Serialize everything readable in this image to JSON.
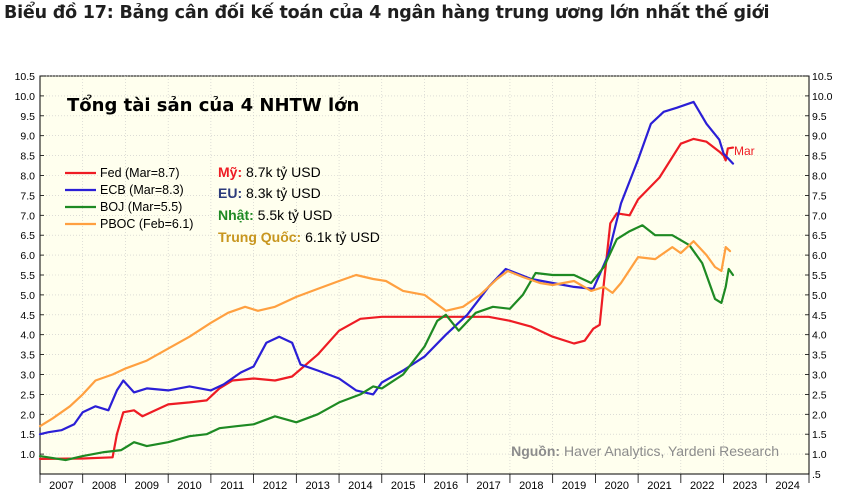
{
  "heading": "Biểu đồ 17: Bảng cân đối kế toán của 4 ngân hàng trung ương lớn nhất thế giới",
  "chart_data": {
    "type": "line",
    "title": "Tổng tài sản của 4 NHTW lớn",
    "xlabel": "",
    "ylabel": "",
    "xlim": [
      2007,
      2025
    ],
    "ylim": [
      0.5,
      10.5
    ],
    "years": [
      "2007",
      "2008",
      "2009",
      "2010",
      "2011",
      "2012",
      "2013",
      "2014",
      "2015",
      "2016",
      "2017",
      "2018",
      "2019",
      "2020",
      "2021",
      "2022",
      "2023",
      "2024"
    ],
    "yticks_left": [
      "1.0",
      "1.5",
      "2.0",
      "2.5",
      "3.0",
      "3.5",
      "4.0",
      "4.5",
      "5.0",
      "5.5",
      "6.0",
      "6.5",
      "7.0",
      "7.5",
      "8.0",
      "8.5",
      "9.0",
      "9.5",
      "10.0",
      "10.5"
    ],
    "yticks_right": [
      ".5",
      "1.0",
      "1.5",
      "2.0",
      "2.5",
      "3.0",
      "3.5",
      "4.0",
      "4.5",
      "5.0",
      "5.5",
      "6.0",
      "6.5",
      "7.0",
      "7.5",
      "8.0",
      "8.5",
      "9.0",
      "9.5",
      "10.0",
      "10.5"
    ],
    "colors": {
      "plot_bg": "#ffffee",
      "fed": "#ee1c24",
      "ecb": "#2b1fd6",
      "boj": "#1e8a23",
      "pboc": "#ffa040",
      "grid": "#c8c8c8",
      "note_gray": "#8c8c8c",
      "eu_label": "#2b3a7a",
      "china_label": "#c8961e"
    },
    "series": [
      {
        "key": "fed",
        "name": "Fed (Mar=8.7)",
        "color": "#ee1c24",
        "points": [
          [
            2007.0,
            0.88
          ],
          [
            2008.0,
            0.89
          ],
          [
            2008.7,
            0.92
          ],
          [
            2008.8,
            1.5
          ],
          [
            2008.95,
            2.05
          ],
          [
            2009.2,
            2.1
          ],
          [
            2009.4,
            1.95
          ],
          [
            2009.7,
            2.1
          ],
          [
            2010.0,
            2.25
          ],
          [
            2010.5,
            2.3
          ],
          [
            2010.9,
            2.35
          ],
          [
            2011.2,
            2.65
          ],
          [
            2011.5,
            2.85
          ],
          [
            2012.0,
            2.9
          ],
          [
            2012.5,
            2.85
          ],
          [
            2012.9,
            2.95
          ],
          [
            2013.5,
            3.5
          ],
          [
            2014.0,
            4.1
          ],
          [
            2014.5,
            4.4
          ],
          [
            2015.0,
            4.45
          ],
          [
            2016.0,
            4.45
          ],
          [
            2017.0,
            4.45
          ],
          [
            2017.5,
            4.45
          ],
          [
            2018.0,
            4.35
          ],
          [
            2018.5,
            4.2
          ],
          [
            2019.0,
            3.95
          ],
          [
            2019.5,
            3.78
          ],
          [
            2019.75,
            3.85
          ],
          [
            2019.95,
            4.15
          ],
          [
            2020.1,
            4.25
          ],
          [
            2020.2,
            5.3
          ],
          [
            2020.35,
            6.8
          ],
          [
            2020.5,
            7.05
          ],
          [
            2020.8,
            7.0
          ],
          [
            2021.0,
            7.4
          ],
          [
            2021.5,
            7.95
          ],
          [
            2022.0,
            8.8
          ],
          [
            2022.3,
            8.92
          ],
          [
            2022.6,
            8.85
          ],
          [
            2022.9,
            8.6
          ],
          [
            2023.0,
            8.5
          ],
          [
            2023.05,
            8.38
          ],
          [
            2023.1,
            8.68
          ],
          [
            2023.22,
            8.7
          ]
        ]
      },
      {
        "key": "ecb",
        "name": "ECB (Mar=8.3)",
        "color": "#2b1fd6",
        "points": [
          [
            2007.0,
            1.5
          ],
          [
            2007.2,
            1.55
          ],
          [
            2007.5,
            1.6
          ],
          [
            2007.8,
            1.75
          ],
          [
            2008.0,
            2.05
          ],
          [
            2008.3,
            2.2
          ],
          [
            2008.6,
            2.1
          ],
          [
            2008.8,
            2.6
          ],
          [
            2008.95,
            2.85
          ],
          [
            2009.2,
            2.55
          ],
          [
            2009.5,
            2.65
          ],
          [
            2010.0,
            2.6
          ],
          [
            2010.5,
            2.7
          ],
          [
            2011.0,
            2.6
          ],
          [
            2011.3,
            2.75
          ],
          [
            2011.7,
            3.05
          ],
          [
            2012.0,
            3.2
          ],
          [
            2012.3,
            3.8
          ],
          [
            2012.6,
            3.95
          ],
          [
            2012.9,
            3.8
          ],
          [
            2013.1,
            3.25
          ],
          [
            2013.5,
            3.1
          ],
          [
            2014.0,
            2.9
          ],
          [
            2014.4,
            2.6
          ],
          [
            2014.8,
            2.5
          ],
          [
            2015.0,
            2.8
          ],
          [
            2015.5,
            3.1
          ],
          [
            2016.0,
            3.45
          ],
          [
            2016.5,
            4.0
          ],
          [
            2017.0,
            4.5
          ],
          [
            2017.5,
            5.2
          ],
          [
            2017.9,
            5.65
          ],
          [
            2018.5,
            5.4
          ],
          [
            2019.0,
            5.3
          ],
          [
            2019.5,
            5.2
          ],
          [
            2019.95,
            5.15
          ],
          [
            2020.3,
            6.0
          ],
          [
            2020.6,
            7.3
          ],
          [
            2021.0,
            8.4
          ],
          [
            2021.3,
            9.3
          ],
          [
            2021.6,
            9.6
          ],
          [
            2021.9,
            9.7
          ],
          [
            2022.3,
            9.85
          ],
          [
            2022.6,
            9.3
          ],
          [
            2022.9,
            8.9
          ],
          [
            2023.0,
            8.55
          ],
          [
            2023.22,
            8.3
          ]
        ]
      },
      {
        "key": "boj",
        "name": "BOJ (Mar=5.5)",
        "color": "#1e8a23",
        "points": [
          [
            2007.0,
            0.95
          ],
          [
            2007.3,
            0.9
          ],
          [
            2007.6,
            0.85
          ],
          [
            2008.0,
            0.95
          ],
          [
            2008.5,
            1.05
          ],
          [
            2008.9,
            1.1
          ],
          [
            2009.2,
            1.3
          ],
          [
            2009.5,
            1.2
          ],
          [
            2010.0,
            1.3
          ],
          [
            2010.5,
            1.45
          ],
          [
            2010.9,
            1.5
          ],
          [
            2011.2,
            1.65
          ],
          [
            2011.6,
            1.7
          ],
          [
            2012.0,
            1.75
          ],
          [
            2012.5,
            1.95
          ],
          [
            2013.0,
            1.8
          ],
          [
            2013.5,
            2.0
          ],
          [
            2014.0,
            2.3
          ],
          [
            2014.5,
            2.5
          ],
          [
            2014.8,
            2.7
          ],
          [
            2015.0,
            2.65
          ],
          [
            2015.5,
            3.0
          ],
          [
            2016.0,
            3.7
          ],
          [
            2016.3,
            4.35
          ],
          [
            2016.5,
            4.5
          ],
          [
            2016.8,
            4.1
          ],
          [
            2017.2,
            4.55
          ],
          [
            2017.6,
            4.7
          ],
          [
            2018.0,
            4.65
          ],
          [
            2018.3,
            5.0
          ],
          [
            2018.6,
            5.55
          ],
          [
            2019.0,
            5.5
          ],
          [
            2019.5,
            5.5
          ],
          [
            2019.9,
            5.3
          ],
          [
            2020.2,
            5.7
          ],
          [
            2020.5,
            6.4
          ],
          [
            2020.8,
            6.6
          ],
          [
            2021.1,
            6.75
          ],
          [
            2021.4,
            6.5
          ],
          [
            2021.8,
            6.5
          ],
          [
            2022.2,
            6.25
          ],
          [
            2022.5,
            5.8
          ],
          [
            2022.8,
            4.9
          ],
          [
            2022.95,
            4.8
          ],
          [
            2023.05,
            5.2
          ],
          [
            2023.12,
            5.65
          ],
          [
            2023.22,
            5.5
          ]
        ]
      },
      {
        "key": "pboc",
        "name": "PBOC (Feb=6.1)",
        "color": "#ffa040",
        "points": [
          [
            2007.0,
            1.7
          ],
          [
            2007.3,
            1.9
          ],
          [
            2007.7,
            2.2
          ],
          [
            2008.0,
            2.5
          ],
          [
            2008.3,
            2.85
          ],
          [
            2008.7,
            3.0
          ],
          [
            2009.0,
            3.15
          ],
          [
            2009.5,
            3.35
          ],
          [
            2010.0,
            3.65
          ],
          [
            2010.5,
            3.95
          ],
          [
            2011.0,
            4.3
          ],
          [
            2011.4,
            4.55
          ],
          [
            2011.8,
            4.7
          ],
          [
            2012.1,
            4.6
          ],
          [
            2012.5,
            4.7
          ],
          [
            2013.0,
            4.95
          ],
          [
            2013.5,
            5.15
          ],
          [
            2014.0,
            5.35
          ],
          [
            2014.4,
            5.5
          ],
          [
            2014.8,
            5.4
          ],
          [
            2015.1,
            5.35
          ],
          [
            2015.5,
            5.1
          ],
          [
            2016.0,
            5.0
          ],
          [
            2016.5,
            4.6
          ],
          [
            2016.9,
            4.7
          ],
          [
            2017.3,
            5.0
          ],
          [
            2017.7,
            5.4
          ],
          [
            2017.95,
            5.6
          ],
          [
            2018.3,
            5.45
          ],
          [
            2018.7,
            5.3
          ],
          [
            2019.0,
            5.25
          ],
          [
            2019.5,
            5.35
          ],
          [
            2019.9,
            5.1
          ],
          [
            2020.2,
            5.2
          ],
          [
            2020.4,
            5.05
          ],
          [
            2020.6,
            5.3
          ],
          [
            2021.0,
            5.95
          ],
          [
            2021.4,
            5.9
          ],
          [
            2021.8,
            6.2
          ],
          [
            2022.0,
            6.05
          ],
          [
            2022.3,
            6.35
          ],
          [
            2022.6,
            6.0
          ],
          [
            2022.8,
            5.7
          ],
          [
            2022.95,
            5.6
          ],
          [
            2023.05,
            6.2
          ],
          [
            2023.15,
            6.1
          ]
        ]
      }
    ],
    "legend": [
      "Fed (Mar=8.7)",
      "ECB (Mar=8.3)",
      "BOJ (Mar=5.5)",
      "PBOC (Feb=6.1)"
    ],
    "annotations": {
      "mar": "Mar",
      "us_label": "Mỹ:",
      "us_value": " 8.7k tỷ USD",
      "eu_label": "EU:",
      "eu_value": " 8.3k tỷ USD",
      "jp_label": "Nhật:",
      "jp_value": " 5.5k tỷ USD",
      "cn_label": "Trung Quốc:",
      "cn_value": " 6.1k tỷ USD",
      "source_label": "Nguồn:",
      "source_text": " Haver Analytics, Yardeni Research"
    }
  }
}
